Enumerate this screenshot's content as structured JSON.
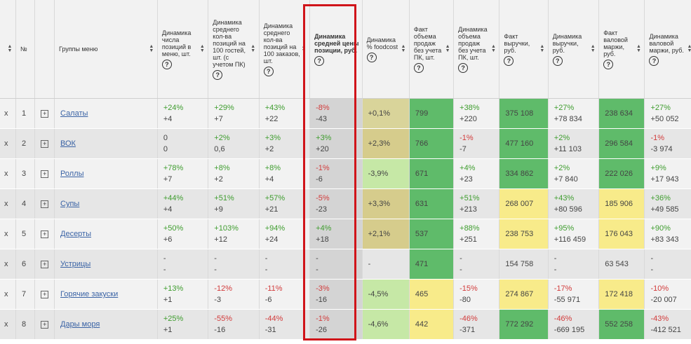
{
  "header": {
    "columns": [
      {
        "label": "",
        "sort": true
      },
      {
        "label": "№",
        "sort": false
      },
      {
        "label": "",
        "sort": false
      },
      {
        "label": "Группы меню",
        "sort": true
      },
      {
        "label": "Динамика числа позиций в меню, шт.",
        "help": "?",
        "sort": true
      },
      {
        "label": "Динамика среднего кол-ва позиций на 100 гостей, шт. (с учетом ПК)",
        "help": "?",
        "sort": true
      },
      {
        "label": "Динамика среднего кол-ва позиций на 100 заказов, шт.",
        "help": "?",
        "sort": true
      },
      {
        "label": "Динамика средней цены позиции, руб.",
        "help": "?",
        "sort": false,
        "bold": true
      },
      {
        "label": "Динамика % foodcost",
        "help": "?",
        "sort": true
      },
      {
        "label": "Факт объема продаж без учета ПК, шт.",
        "help": "?",
        "sort": true
      },
      {
        "label": "Динамика объема продаж без учета ПК, шт.",
        "help": "?",
        "sort": true
      },
      {
        "label": "Факт выручки, руб.",
        "help": "?",
        "sort": true
      },
      {
        "label": "Динамика выручки, руб.",
        "help": "?",
        "sort": true
      },
      {
        "label": "Факт валовой маржи, руб.",
        "help": "?",
        "sort": true
      },
      {
        "label": "Динамика валовой маржи, руб.",
        "help": "?",
        "sort": true
      }
    ]
  },
  "colors": {
    "green": "#5fbb6a",
    "light_green": "#c6e8a6",
    "olive": "#d9d49a",
    "tan": "#d6cc8c",
    "yellow": "#f8eb8a",
    "positive": "#3f9d2f",
    "negative": "#d23b3b",
    "highlight_border": "#d0141a"
  },
  "rows": [
    {
      "x": "x",
      "num": "1",
      "name": "Салаты",
      "c1": [
        "+24%",
        "+4"
      ],
      "c2": [
        "+29%",
        "+7"
      ],
      "c3": [
        "+43%",
        "+22"
      ],
      "c4": [
        "-8%",
        "-43"
      ],
      "food": "+0,1%",
      "food_bg": "olive",
      "vol": "799",
      "vol_bg": "green",
      "dvol": [
        "+38%",
        "+220"
      ],
      "rev": "375 108",
      "rev_bg": "green",
      "drev": [
        "+27%",
        "+78 834"
      ],
      "mar": "238 634",
      "mar_bg": "green",
      "dmar": [
        "+27%",
        "+50 052"
      ]
    },
    {
      "x": "x",
      "num": "2",
      "name": "ВОК",
      "c1": [
        "0",
        "0"
      ],
      "c2": [
        "+2%",
        "0,6"
      ],
      "c3": [
        "+3%",
        "+2"
      ],
      "c4": [
        "+3%",
        "+20"
      ],
      "food": "+2,3%",
      "food_bg": "tan",
      "vol": "766",
      "vol_bg": "green",
      "dvol": [
        "-1%",
        "-7"
      ],
      "rev": "477 160",
      "rev_bg": "green",
      "drev": [
        "+2%",
        "+11 103"
      ],
      "mar": "296 584",
      "mar_bg": "green",
      "dmar": [
        "-1%",
        "-3 974"
      ]
    },
    {
      "x": "x",
      "num": "3",
      "name": "Роллы",
      "c1": [
        "+78%",
        "+7"
      ],
      "c2": [
        "+8%",
        "+2"
      ],
      "c3": [
        "+8%",
        "+4"
      ],
      "c4": [
        "-1%",
        "-6"
      ],
      "food": "-3,9%",
      "food_bg": "light_green",
      "vol": "671",
      "vol_bg": "green",
      "dvol": [
        "+4%",
        "+23"
      ],
      "rev": "334 862",
      "rev_bg": "green",
      "drev": [
        "+2%",
        "+7 840"
      ],
      "mar": "222 026",
      "mar_bg": "green",
      "dmar": [
        "+9%",
        "+17 943"
      ]
    },
    {
      "x": "x",
      "num": "4",
      "name": "Супы",
      "c1": [
        "+44%",
        "+4"
      ],
      "c2": [
        "+51%",
        "+9"
      ],
      "c3": [
        "+57%",
        "+21"
      ],
      "c4": [
        "-5%",
        "-23"
      ],
      "food": "+3,3%",
      "food_bg": "tan",
      "vol": "631",
      "vol_bg": "green",
      "dvol": [
        "+51%",
        "+213"
      ],
      "rev": "268 007",
      "rev_bg": "yellow",
      "drev": [
        "+43%",
        "+80 596"
      ],
      "mar": "185 906",
      "mar_bg": "yellow",
      "dmar": [
        "+36%",
        "+49 585"
      ]
    },
    {
      "x": "x",
      "num": "5",
      "name": "Десерты",
      "c1": [
        "+50%",
        "+6"
      ],
      "c2": [
        "+103%",
        "+12"
      ],
      "c3": [
        "+94%",
        "+24"
      ],
      "c4": [
        "+4%",
        "+18"
      ],
      "food": "+2,1%",
      "food_bg": "tan",
      "vol": "537",
      "vol_bg": "green",
      "dvol": [
        "+88%",
        "+251"
      ],
      "rev": "238 753",
      "rev_bg": "yellow",
      "drev": [
        "+95%",
        "+116 459"
      ],
      "mar": "176 043",
      "mar_bg": "yellow",
      "dmar": [
        "+90%",
        "+83 343"
      ]
    },
    {
      "x": "x",
      "num": "6",
      "name": "Устрицы",
      "c1": [
        "-",
        "-"
      ],
      "c2": [
        "-",
        "-"
      ],
      "c3": [
        "-",
        "-"
      ],
      "c4": [
        "-",
        "-"
      ],
      "food": "-",
      "food_bg": "none",
      "vol": "471",
      "vol_bg": "green",
      "dvol": [
        "-",
        "-"
      ],
      "rev": "154 758",
      "rev_bg": "none",
      "drev": [
        "-",
        "-"
      ],
      "mar": "63 543",
      "mar_bg": "none",
      "dmar": [
        "-",
        "-"
      ]
    },
    {
      "x": "x",
      "num": "7",
      "name": "Горячие закуски",
      "c1": [
        "+13%",
        "+1"
      ],
      "c2": [
        "-12%",
        "-3"
      ],
      "c3": [
        "-11%",
        "-6"
      ],
      "c4": [
        "-3%",
        "-16"
      ],
      "food": "-4,5%",
      "food_bg": "light_green",
      "vol": "465",
      "vol_bg": "yellow",
      "dvol": [
        "-15%",
        "-80"
      ],
      "rev": "274 867",
      "rev_bg": "yellow",
      "drev": [
        "-17%",
        "-55 971"
      ],
      "mar": "172 418",
      "mar_bg": "yellow",
      "dmar": [
        "-10%",
        "-20 007"
      ]
    },
    {
      "x": "x",
      "num": "8",
      "name": "Дары моря",
      "c1": [
        "+25%",
        "+1"
      ],
      "c2": [
        "-55%",
        "-16"
      ],
      "c3": [
        "-44%",
        "-31"
      ],
      "c4": [
        "-1%",
        "-26"
      ],
      "food": "-4,6%",
      "food_bg": "light_green",
      "vol": "442",
      "vol_bg": "yellow",
      "dvol": [
        "-46%",
        "-371"
      ],
      "rev": "772 292",
      "rev_bg": "green",
      "drev": [
        "-46%",
        "-669 195"
      ],
      "mar": "552 258",
      "mar_bg": "green",
      "dmar": [
        "-43%",
        "-412 521"
      ]
    }
  ]
}
